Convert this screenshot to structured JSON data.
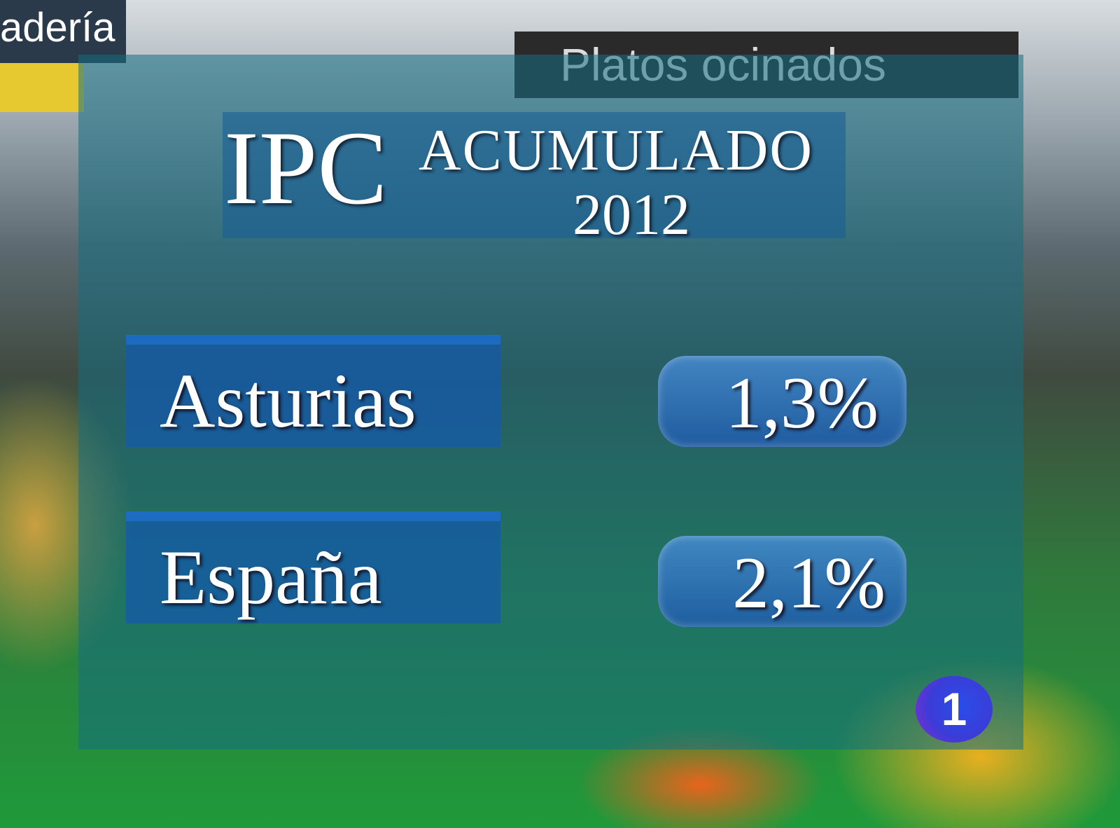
{
  "background": {
    "store_sign": "Platos  ocinados",
    "left_sign": "adería"
  },
  "title": {
    "main": "IPC",
    "sub": "ACUMULADO",
    "year": "2012"
  },
  "rows": [
    {
      "region": "Asturias",
      "value": "1,3%"
    },
    {
      "region": "España",
      "value": "2,1%"
    }
  ],
  "channel_logo": "1",
  "colors": {
    "panel": "#146e82",
    "bar": "#145aaa",
    "pill": "#3a7fcc",
    "logo": "#2a4de8"
  }
}
